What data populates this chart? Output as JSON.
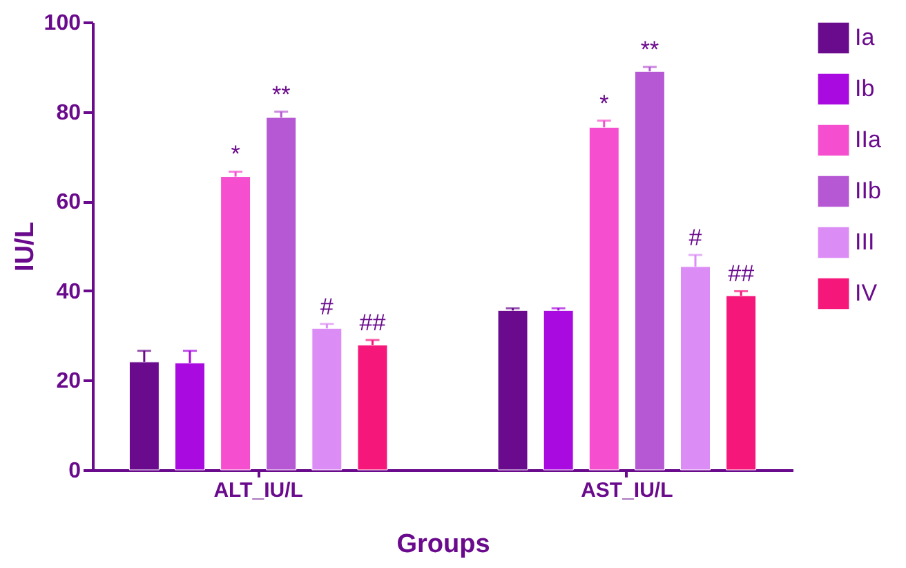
{
  "chart_data": {
    "type": "bar",
    "xlabel": "Groups",
    "ylabel": "IU/L",
    "categories": [
      "ALT_IU/L",
      "AST_IU/L"
    ],
    "series": [
      {
        "name": "Ia",
        "color": "#6a0a8c",
        "values": [
          24.1,
          35.6
        ],
        "errors": [
          2.5,
          0.5
        ],
        "value_labels": [
          null,
          null
        ]
      },
      {
        "name": "Ib",
        "color": "#a80ae0",
        "values": [
          23.9,
          35.6
        ],
        "errors": [
          2.7,
          0.5
        ],
        "value_labels": [
          null,
          null
        ]
      },
      {
        "name": "IIa",
        "color": "#f54fcf",
        "values": [
          65.5,
          76.5
        ],
        "errors": [
          1.1,
          1.5
        ],
        "value_labels": [
          "*",
          "*"
        ]
      },
      {
        "name": "IIb",
        "color": "#b657d4",
        "values": [
          78.7,
          89.0
        ],
        "errors": [
          1.3,
          1.0
        ],
        "value_labels": [
          "**",
          "**"
        ]
      },
      {
        "name": "III",
        "color": "#dc8cf5",
        "values": [
          31.6,
          45.4
        ],
        "errors": [
          1.0,
          2.6
        ],
        "value_labels": [
          "#",
          "#"
        ]
      },
      {
        "name": "IV",
        "color": "#f5177a",
        "values": [
          27.9,
          38.9
        ],
        "errors": [
          1.1,
          1.0
        ],
        "value_labels": [
          "##",
          "##"
        ]
      }
    ],
    "ylim": [
      0,
      100
    ],
    "yticks": [
      0,
      20,
      40,
      60,
      80,
      100
    ],
    "grid": false,
    "legend": "right"
  }
}
